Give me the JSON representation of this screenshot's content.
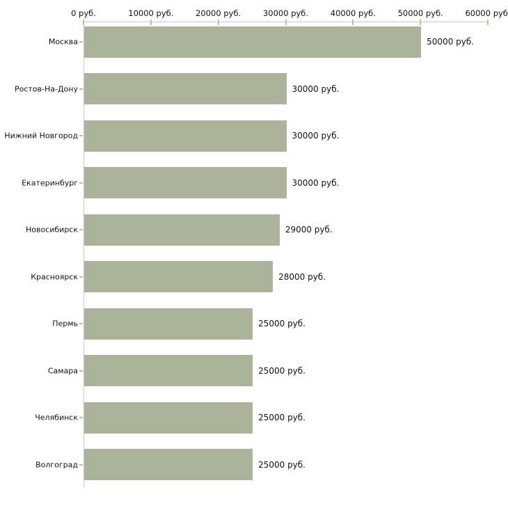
{
  "chart_data": {
    "type": "bar",
    "orientation": "horizontal",
    "title": "",
    "xlabel": "",
    "ylabel": "",
    "unit": "руб.",
    "grid": false,
    "legend": null,
    "xlim": [
      0,
      60000
    ],
    "x_ticks": [
      0,
      10000,
      20000,
      30000,
      40000,
      50000,
      60000
    ],
    "x_tick_labels": [
      "0 руб.",
      "10000 руб.",
      "20000 руб.",
      "30000 руб.",
      "40000 руб.",
      "50000 руб.",
      "60000 руб."
    ],
    "categories": [
      "Москва",
      "Ростов-На-Дону",
      "Нижний Новгород",
      "Екатеринбург",
      "Новосибирск",
      "Красноярск",
      "Пермь",
      "Самара",
      "Челябинск",
      "Волгоград"
    ],
    "values": [
      50000,
      30000,
      30000,
      30000,
      29000,
      28000,
      25000,
      25000,
      25000,
      25000
    ],
    "value_labels": [
      "50000 руб.",
      "30000 руб.",
      "30000 руб.",
      "30000 руб.",
      "29000 руб.",
      "28000 руб.",
      "25000 руб.",
      "25000 руб.",
      "25000 руб.",
      "25000 руб."
    ],
    "value_label_position": "right-of-bar"
  },
  "colors": {
    "background": "#ffffff",
    "bar": "#abb49b",
    "axis_line": "#c6c6c6",
    "tick_mark": "#bcbf92",
    "text": "#111111"
  },
  "layout_hints": {
    "axis_position": "top",
    "category_labels_position": "left"
  }
}
